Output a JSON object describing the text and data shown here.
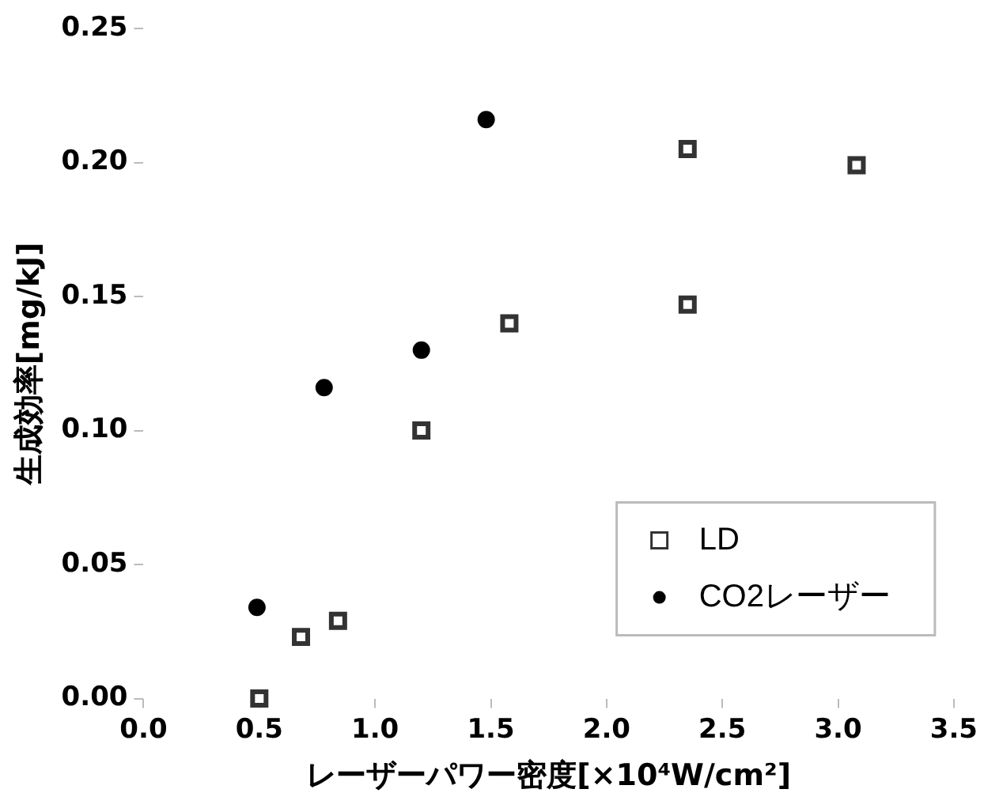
{
  "chart_data": {
    "type": "scatter",
    "xlabel": "レーザーパワー密度[×10⁴W/cm²]",
    "ylabel": "生成効率[mg/kJ]",
    "xlim": [
      0,
      3.5
    ],
    "xticks": [
      {
        "value": 0,
        "label": "0.0"
      },
      0.5,
      {
        "value": 1,
        "label": "1.0"
      },
      1.5,
      {
        "value": 2,
        "label": "2.0"
      },
      2.5,
      {
        "value": 3,
        "label": "3.0"
      },
      3.5
    ],
    "ylim": [
      0,
      0.25
    ],
    "yticks": [
      {
        "value": 0,
        "label": "0.00"
      },
      0.05,
      {
        "value": 0.1,
        "label": "0.10"
      },
      0.15,
      {
        "value": 0.2,
        "label": "0.20"
      },
      0.25
    ],
    "grid": false,
    "legend": "bottom right",
    "series": [
      {
        "name": "LD",
        "color": "#333333",
        "marker": "square",
        "x": [
          0.5,
          0.68,
          0.84,
          1.2,
          1.58,
          2.35,
          2.35,
          3.08
        ],
        "values": [
          0.0,
          0.023,
          0.029,
          0.1,
          0.14,
          0.147,
          0.205,
          0.199
        ]
      },
      {
        "name": "CO2レーザー",
        "color": "#000000",
        "marker": "circle",
        "x": [
          0.49,
          0.78,
          1.2,
          1.48
        ],
        "values": [
          0.034,
          0.116,
          0.13,
          0.216
        ]
      }
    ]
  }
}
